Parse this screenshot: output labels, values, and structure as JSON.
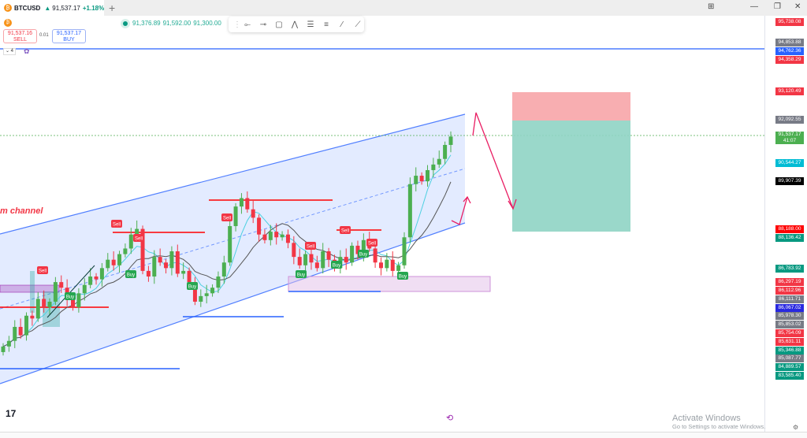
{
  "tab": {
    "symbol": "BTCUSD",
    "price": "91,537.17",
    "change": "+1.18%",
    "more": "/ U"
  },
  "window_controls": {
    "layout": "⊞",
    "minimize": "—",
    "restore": "❐",
    "close": "✕"
  },
  "legend": {
    "open": "91,376.89",
    "high": "91,592.00",
    "low": "91,300.00"
  },
  "trade": {
    "sell_price": "91,537.16",
    "sell_label": "SELL",
    "spread": "0.01",
    "buy_price": "91,537.17",
    "buy_label": "BUY"
  },
  "indicators_collapse": "⌄ 4",
  "drawing_toolbar": {
    "tools": [
      "horizontal-line",
      "horizontal-ray",
      "rectangle",
      "path",
      "parallel-channel",
      "regression",
      "trend-line",
      "ruler"
    ]
  },
  "annotation": {
    "channel_text": "m channel",
    "sell": "Sell",
    "buy": "Buy"
  },
  "price_axis": [
    {
      "price": "95,738.08",
      "color": "#f23645"
    },
    {
      "price": "94,853.88",
      "color": "#787b86"
    },
    {
      "price": "94,762.36",
      "color": "#2962ff"
    },
    {
      "price": "94,358.29",
      "color": "#f23645"
    },
    {
      "price": "93,120.49",
      "color": "#f23645"
    },
    {
      "price": "92,092.55",
      "color": "#787b86"
    },
    {
      "price": "91,537.17",
      "color": "#4caf50",
      "sub": "41:07"
    },
    {
      "price": "90,544.27",
      "color": "#00bcd4"
    },
    {
      "price": "89,907.39",
      "color": "#000000"
    },
    {
      "price": "88,188.00",
      "color": "#ff0000"
    },
    {
      "price": "88,136.42",
      "color": "#089981"
    },
    {
      "price": "86,783.92",
      "color": "#089981"
    },
    {
      "price": "86,297.19",
      "color": "#f23645"
    },
    {
      "price": "86,112.96",
      "color": "#f23645"
    },
    {
      "price": "86,111.71",
      "color": "#787b86"
    },
    {
      "price": "86,067.02",
      "color": "#2929e0"
    },
    {
      "price": "85,978.30",
      "color": "#787b86"
    },
    {
      "price": "85,853.02",
      "color": "#787b86"
    },
    {
      "price": "85,754.09",
      "color": "#f23645"
    },
    {
      "price": "85,631.11",
      "color": "#f23645"
    },
    {
      "price": "85,346.88",
      "color": "#089981"
    },
    {
      "price": "85,087.77",
      "color": "#787b86"
    },
    {
      "price": "84,889.57",
      "color": "#089981"
    },
    {
      "price": "83,585.40",
      "color": "#089981"
    }
  ],
  "chart_data": {
    "type": "candlestick",
    "closes": [
      84000,
      84200,
      84700,
      84400,
      85100,
      85000,
      85700,
      85400,
      85600,
      86300,
      86100,
      85700,
      85400,
      85900,
      86200,
      86500,
      86400,
      86800,
      87100,
      86900,
      87300,
      87500,
      88000,
      88200,
      86700,
      86500,
      87200,
      87000,
      86800,
      87400,
      86600,
      86700,
      86300,
      85600,
      85800,
      85900,
      86100,
      86500,
      87000,
      88300,
      89000,
      89300,
      88900,
      88600,
      88000,
      87800,
      88100,
      87900,
      88000,
      87700,
      87200,
      86900,
      87300,
      87000,
      86800,
      87400,
      87100,
      86800,
      87200,
      87000,
      87600,
      87300,
      87800,
      87500,
      87000,
      86800,
      87100,
      86700,
      86900,
      87900,
      89800,
      90100,
      89900,
      90300,
      90500,
      90700,
      91200,
      91500
    ],
    "up_color": "#4caf50",
    "down_color": "#f23645"
  },
  "footer": {
    "logo": "17",
    "activate_title": "Activate Windows",
    "activate_sub": "Go to Settings to activate Windows."
  }
}
